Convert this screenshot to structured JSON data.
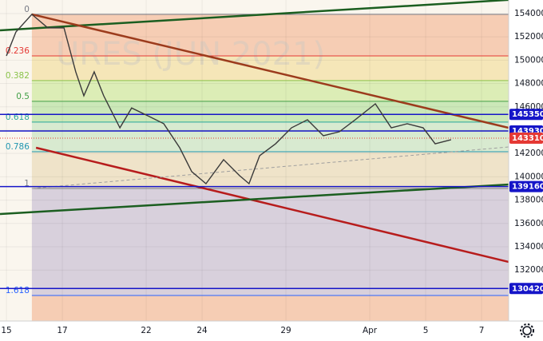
{
  "chart_data": {
    "type": "line",
    "watermark": "URES (JUN 2021)",
    "xlim": [
      -0.23,
      17.97
    ],
    "ylim": [
      127630,
      155160
    ],
    "xticks": [
      {
        "value": 0,
        "label": "15"
      },
      {
        "value": 2,
        "label": "17"
      },
      {
        "value": 5,
        "label": "22"
      },
      {
        "value": 7,
        "label": "24"
      },
      {
        "value": 10,
        "label": "29"
      },
      {
        "value": 13,
        "label": "Apr"
      },
      {
        "value": 15,
        "label": "5"
      },
      {
        "value": 17,
        "label": "7"
      }
    ],
    "yticks": [
      132000,
      134000,
      136000,
      138000,
      140000,
      142000,
      144000,
      146000,
      148000,
      150000,
      152000,
      154000
    ],
    "series": [
      {
        "color": "#3a3a3a",
        "x": [
          0,
          0.34,
          0.91,
          1.48,
          2.06,
          2.48,
          2.77,
          3.14,
          3.48,
          4.06,
          4.48,
          5.06,
          5.63,
          6.2,
          6.63,
          7.14,
          7.77,
          8.34,
          8.68,
          9.06,
          9.63,
          10.2,
          10.77,
          11.34,
          11.91,
          12.48,
          13.2,
          13.77,
          14.34,
          14.91,
          15.34,
          15.91
        ],
        "values": [
          150370,
          152420,
          153930,
          152770,
          152770,
          149000,
          146950,
          149000,
          146950,
          144200,
          145900,
          145230,
          144550,
          142490,
          140440,
          139410,
          141470,
          140100,
          139410,
          141810,
          142830,
          144200,
          144890,
          143520,
          143860,
          144890,
          146260,
          144200,
          144550,
          144200,
          142830,
          143180
        ]
      }
    ],
    "fib_start_x": 0.91,
    "fib_levels": [
      {
        "ratio": 0,
        "price": 153930,
        "color": "#787b86",
        "fill": "#f6cdb4"
      },
      {
        "ratio": 0.236,
        "price": 150370,
        "color": "#e53935",
        "fill": "#f5e6b8"
      },
      {
        "ratio": 0.382,
        "price": 148250,
        "color": "#8bc34a",
        "fill": "#dcedb6"
      },
      {
        "ratio": 0.5,
        "price": 146470,
        "color": "#43a047",
        "fill": "#cbe8b8"
      },
      {
        "ratio": 0.618,
        "price": 144690,
        "color": "#26a69a",
        "fill": "#d8ead0"
      },
      {
        "ratio": 0.786,
        "price": 142150,
        "color": "#2196b0",
        "fill": "#efe3c9"
      },
      {
        "ratio": 1,
        "price": 139000,
        "color": "#787b86",
        "fill": "#d8d0dc"
      },
      {
        "ratio": 1.618,
        "price": 129820,
        "color": "#2962ff",
        "fill": "#f6cdb4"
      }
    ],
    "h_levels": [
      {
        "price": 145350,
        "color": "#1515c8"
      },
      {
        "price": 143930,
        "color": "#1515c8"
      },
      {
        "price": 139160,
        "color": "#1515c8"
      },
      {
        "price": 130420,
        "color": "#1515c8"
      }
    ],
    "last_price": {
      "price": 143310,
      "color": "#e53935"
    },
    "trend_lines": [
      {
        "color": "#1b5e20",
        "x": [
          -0.23,
          17.97
        ],
        "values": [
          152560,
          155170
        ]
      },
      {
        "color": "#9c3b1c",
        "x": [
          0.91,
          17.97
        ],
        "values": [
          153930,
          144200
        ]
      },
      {
        "color": "#b71c1c",
        "x": [
          1.06,
          17.97
        ],
        "values": [
          142490,
          132700
        ]
      },
      {
        "color": "#1b5e20",
        "x": [
          -0.23,
          17.97
        ],
        "values": [
          136810,
          139340
        ]
      },
      {
        "color": "#9e9e9e",
        "x": [
          0.91,
          17.97
        ],
        "values": [
          139000,
          142560
        ],
        "dashed": true
      }
    ]
  }
}
